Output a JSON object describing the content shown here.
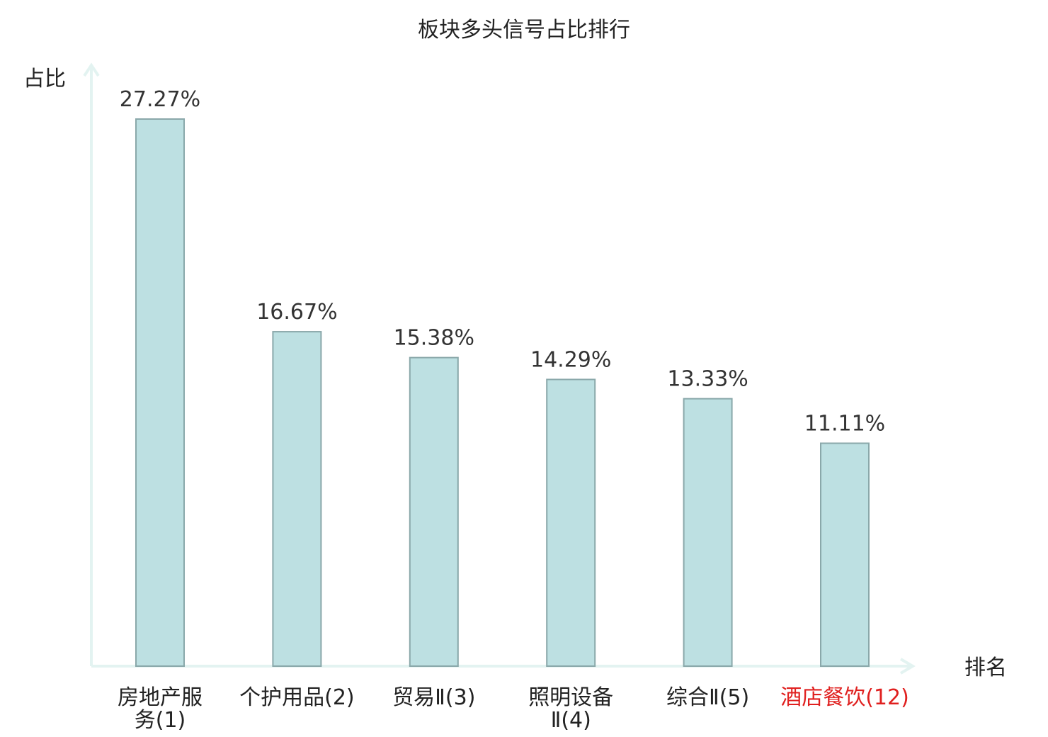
{
  "chart_data": {
    "type": "bar",
    "title": "板块多头信号占比排行",
    "xlabel": "排名",
    "ylabel": "占比",
    "ylim": [
      0,
      30
    ],
    "grid": false,
    "categories": [
      {
        "name": "房地产服务",
        "rank": "(1)",
        "lines": [
          "房地产服",
          "务(1)"
        ],
        "highlight": false
      },
      {
        "name": "个护用品",
        "rank": "(2)",
        "lines": [
          "个护用品(2)"
        ],
        "highlight": false
      },
      {
        "name": "贸易Ⅱ",
        "rank": "(3)",
        "lines": [
          "贸易Ⅱ(3)"
        ],
        "highlight": false
      },
      {
        "name": "照明设备Ⅱ",
        "rank": "(4)",
        "lines": [
          "照明设备",
          "Ⅱ(4)"
        ],
        "highlight": false
      },
      {
        "name": "综合Ⅱ",
        "rank": "(5)",
        "lines": [
          "综合Ⅱ(5)"
        ],
        "highlight": false
      },
      {
        "name": "酒店餐饮",
        "rank": "(12)",
        "lines": [
          "酒店餐饮(12)"
        ],
        "highlight": true
      }
    ],
    "values": [
      27.27,
      16.67,
      15.38,
      14.29,
      13.33,
      11.11
    ],
    "value_labels": [
      "27.27%",
      "16.67%",
      "15.38%",
      "14.29%",
      "13.33%",
      "11.11%"
    ],
    "colors": {
      "bar_fill": "#bde0e2",
      "bar_stroke": "#8aa8aa",
      "axis": "#e3f3f1",
      "highlight": "#e0201f",
      "text": "#222222"
    }
  }
}
